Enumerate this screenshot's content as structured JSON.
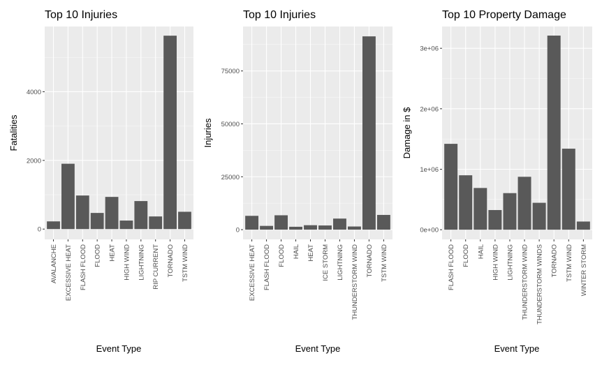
{
  "chart_data": [
    {
      "type": "bar",
      "title": "Top 10 Injuries",
      "xlabel": "Event Type",
      "ylabel": "Fatalities",
      "categories": [
        "AVALANCHE",
        "EXCESSIVE HEAT",
        "FLASH FLOOD",
        "FLOOD",
        "HEAT",
        "HIGH WIND",
        "LIGHTNING",
        "RIP CURRENT",
        "TORNADO",
        "TSTM WIND"
      ],
      "values": [
        224,
        1903,
        978,
        470,
        937,
        248,
        816,
        368,
        5633,
        504
      ],
      "ylim": [
        -300,
        5900
      ],
      "yticks": [
        0,
        2000,
        4000
      ],
      "ytick_labels": [
        "0",
        "2000",
        "4000"
      ],
      "grid": true,
      "color": "#595959"
    },
    {
      "type": "bar",
      "title": "Top 10 Injuries",
      "xlabel": "Event Type",
      "ylabel": "Injuries",
      "categories": [
        "EXCESSIVE HEAT",
        "FLASH FLOOD",
        "FLOOD",
        "HAIL",
        "HEAT",
        "ICE STORM",
        "LIGHTNING",
        "THUNDERSTORM WIND",
        "TORNADO",
        "TSTM WIND"
      ],
      "values": [
        6525,
        1777,
        6789,
        1361,
        2100,
        1975,
        5230,
        1488,
        91346,
        6957
      ],
      "ylim": [
        -4600,
        96000
      ],
      "yticks": [
        0,
        25000,
        50000,
        75000
      ],
      "ytick_labels": [
        "0",
        "25000",
        "50000",
        "75000"
      ],
      "grid": true,
      "color": "#595959"
    },
    {
      "type": "bar",
      "title": "Top 10 Property Damage",
      "xlabel": "Event Type",
      "ylabel": "Damage in $",
      "categories": [
        "FLASH FLOOD",
        "FLOOD",
        "HAIL",
        "HIGH WIND",
        "LIGHTNING",
        "THUNDERSTORM WIND",
        "THUNDERSTORM WINDS",
        "TORNADO",
        "TSTM WIND",
        "WINTER STORM"
      ],
      "values": [
        1420000,
        900000,
        690000,
        325000,
        605000,
        875000,
        445000,
        3210000,
        1340000,
        135000
      ],
      "ylim": [
        -160000,
        3360000
      ],
      "yticks": [
        0,
        1000000,
        2000000,
        3000000
      ],
      "ytick_labels": [
        "0e+00",
        "1e+06",
        "2e+06",
        "3e+06"
      ],
      "grid": true,
      "color": "#595959"
    }
  ]
}
